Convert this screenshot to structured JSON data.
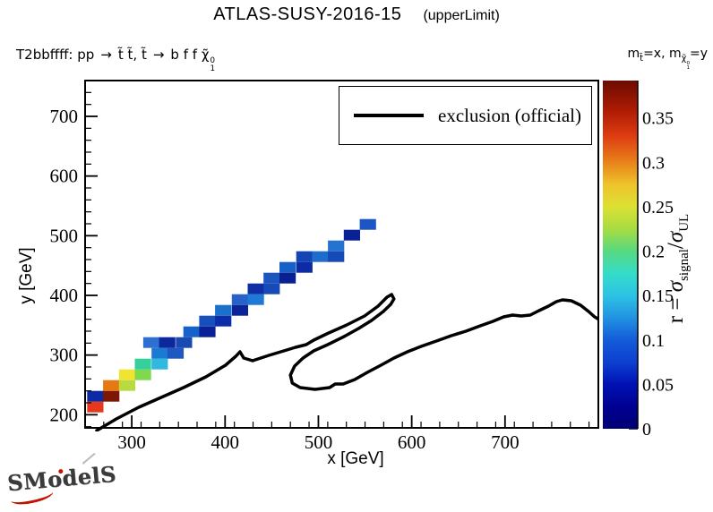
{
  "header": {
    "title": "ATLAS-SUSY-2016-15",
    "subtitle": "(upperLimit)"
  },
  "process_label": {
    "prefix": "T2bbffff: pp",
    "arrow1": "→",
    "stops": "t̃ t̃, t̃",
    "arrow2": "→",
    "decay": "b f f",
    "chi": "χ̃",
    "chi_sup": "0",
    "chi_sub": "1"
  },
  "axis_note": {
    "m1": "m",
    "m1_sub": "t̃",
    "mid": "=x,  ",
    "m2": "m",
    "m2_sub": "χ̃",
    "m2_sub_sup": "0",
    "m2_sub_sub": "1",
    "end": "=y"
  },
  "legend": {
    "label": "exclusion (official)"
  },
  "colorbar_title": {
    "prefix": "r = ",
    "sigma1": "σ",
    "sub1": "signal",
    "slash": "/",
    "sigma2": "σ",
    "sub2": "UL"
  },
  "logo": {
    "text": "SModelS"
  },
  "chart_data": {
    "type": "heatmap",
    "title": "ATLAS-SUSY-2016-15 (upperLimit)",
    "xlabel": "x [GeV]",
    "ylabel": "y [GeV]",
    "zlabel": "r = σ_signal/σ_UL",
    "xlim": [
      250,
      800
    ],
    "ylim": [
      178,
      760
    ],
    "zlim": [
      0,
      0.392
    ],
    "xticks": [
      300,
      400,
      500,
      600,
      700
    ],
    "yticks": [
      200,
      300,
      400,
      500,
      600,
      700
    ],
    "x_minor_step": 20,
    "y_minor_step": 20,
    "grid": false,
    "legend_position": "top-inside",
    "colorbar_ticks": [
      0,
      0.05,
      0.1,
      0.15,
      0.2,
      0.25,
      0.3,
      0.35
    ],
    "colorbar_tick_labels": [
      "0",
      "0.05",
      "0.1",
      "0.15",
      "0.2",
      "0.25",
      "0.3",
      "0.35"
    ],
    "colorbar_stops": [
      [
        0.0,
        "#000074"
      ],
      [
        0.06,
        "#000090"
      ],
      [
        0.128,
        "#0011b4"
      ],
      [
        0.19,
        "#0c3fd0"
      ],
      [
        0.255,
        "#135cd8"
      ],
      [
        0.32,
        "#2293e2"
      ],
      [
        0.383,
        "#2cc3e4"
      ],
      [
        0.446,
        "#35dcc8"
      ],
      [
        0.51,
        "#56d981"
      ],
      [
        0.574,
        "#a8dc41"
      ],
      [
        0.638,
        "#dce033"
      ],
      [
        0.702,
        "#eec32b"
      ],
      [
        0.765,
        "#e8821a"
      ],
      [
        0.842,
        "#dd3b12"
      ],
      [
        0.918,
        "#ab1a03"
      ],
      [
        1.0,
        "#6b0c00"
      ]
    ],
    "cell_size": {
      "x": 17.5,
      "y": 18
    },
    "cells": [
      [
        261,
        213,
        "#e6391b",
        0.36
      ],
      [
        261,
        231,
        "#0c2aa6",
        0.04
      ],
      [
        278,
        231,
        "#7e1604",
        0.39
      ],
      [
        278,
        249,
        "#e6790f",
        0.31
      ],
      [
        295,
        249,
        "#b8dc40",
        0.25
      ],
      [
        295,
        267,
        "#eee431",
        0.27
      ],
      [
        312,
        267,
        "#7fd84e",
        0.23
      ],
      [
        312,
        285,
        "#35cf9e",
        0.19
      ],
      [
        330,
        285,
        "#2fb9df",
        0.16
      ],
      [
        330,
        303,
        "#1b7ad2",
        0.12
      ],
      [
        347,
        303,
        "#2058c2",
        0.09
      ],
      [
        321,
        321,
        "#2e6fd2",
        0.11
      ],
      [
        338,
        321,
        "#0d289c",
        0.04
      ],
      [
        356,
        321,
        "#1b49b4",
        0.07
      ],
      [
        364,
        339,
        "#1563ca",
        0.1
      ],
      [
        381,
        339,
        "#0a2096",
        0.03
      ],
      [
        381,
        357,
        "#1750ba",
        0.08
      ],
      [
        398,
        357,
        "#0c2da8",
        0.05
      ],
      [
        398,
        375,
        "#1a70cb",
        0.11
      ],
      [
        416,
        375,
        "#0b2398",
        0.03
      ],
      [
        416,
        393,
        "#2862c8",
        0.1
      ],
      [
        433,
        393,
        "#1e7ad4",
        0.12
      ],
      [
        433,
        411,
        "#0e2ea6",
        0.04
      ],
      [
        450,
        411,
        "#174ab6",
        0.07
      ],
      [
        450,
        429,
        "#1c55c0",
        0.08
      ],
      [
        467,
        429,
        "#0a1f92",
        0.03
      ],
      [
        467,
        447,
        "#1660c8",
        0.1
      ],
      [
        485,
        447,
        "#0d2ba4",
        0.04
      ],
      [
        485,
        465,
        "#1346b2",
        0.06
      ],
      [
        502,
        465,
        "#1e6ccc",
        0.11
      ],
      [
        519,
        465,
        "#174ab6",
        0.07
      ],
      [
        519,
        483,
        "#2473d2",
        0.11
      ],
      [
        536,
        501,
        "#0a2096",
        0.03
      ],
      [
        553,
        519,
        "#1d55c4",
        0.08
      ]
    ],
    "exclusion_curve": [
      [
        262.5,
        173.5
      ],
      [
        283.5,
        193
      ],
      [
        307.5,
        212.5
      ],
      [
        331.5,
        229
      ],
      [
        355.5,
        245.5
      ],
      [
        379.5,
        263.5
      ],
      [
        400.5,
        283
      ],
      [
        411.5,
        298
      ],
      [
        416,
        305.5
      ],
      [
        420,
        295
      ],
      [
        429.5,
        290.5
      ],
      [
        447,
        299.5
      ],
      [
        463,
        307
      ],
      [
        475.5,
        313
      ],
      [
        487,
        317.5
      ],
      [
        495,
        325
      ],
      [
        511,
        337
      ],
      [
        530.5,
        350.5
      ],
      [
        549.5,
        365.5
      ],
      [
        564,
        382
      ],
      [
        573.5,
        397
      ],
      [
        578.5,
        401.5
      ],
      [
        581,
        394
      ],
      [
        577.5,
        385
      ],
      [
        569.5,
        373
      ],
      [
        557,
        358
      ],
      [
        543,
        344.5
      ],
      [
        527.5,
        331
      ],
      [
        510,
        317.5
      ],
      [
        495,
        307
      ],
      [
        483.5,
        295
      ],
      [
        474.5,
        281.5
      ],
      [
        470,
        266.5
      ],
      [
        472,
        253
      ],
      [
        480.5,
        245.5
      ],
      [
        496.5,
        242.5
      ],
      [
        512,
        245.5
      ],
      [
        518,
        251.5
      ],
      [
        526.5,
        251.5
      ],
      [
        539,
        259
      ],
      [
        552.5,
        271
      ],
      [
        567,
        283
      ],
      [
        581,
        295
      ],
      [
        595.5,
        305.5
      ],
      [
        610,
        314.5
      ],
      [
        626.5,
        323.5
      ],
      [
        642.5,
        332.5
      ],
      [
        658,
        340
      ],
      [
        673.5,
        349
      ],
      [
        687,
        356.5
      ],
      [
        698.5,
        364
      ],
      [
        708,
        367
      ],
      [
        717.5,
        365.5
      ],
      [
        727,
        367
      ],
      [
        736.5,
        374.5
      ],
      [
        746.5,
        382
      ],
      [
        755,
        389.5
      ],
      [
        761.5,
        392.5
      ],
      [
        771,
        391
      ],
      [
        781,
        383.5
      ],
      [
        789.5,
        373
      ],
      [
        796,
        364
      ],
      [
        801,
        359.5
      ]
    ]
  }
}
